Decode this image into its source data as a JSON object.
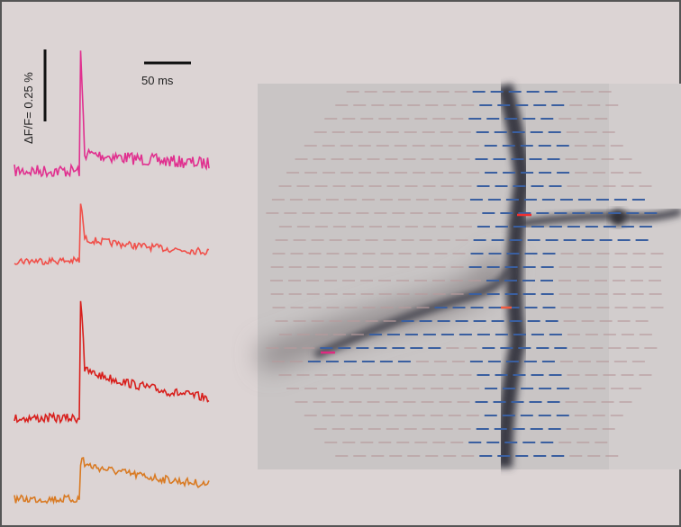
{
  "scale_bars": {
    "vertical": "ΔF/F= 0.25 %",
    "horizontal": "50 ms"
  }
}
